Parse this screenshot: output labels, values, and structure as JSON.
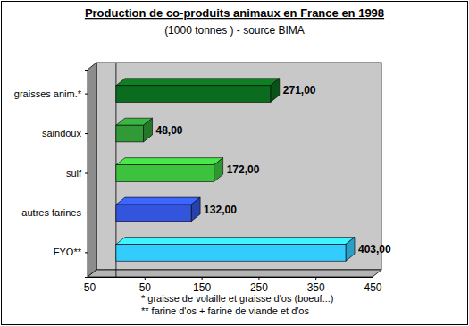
{
  "chart_data": {
    "type": "bar",
    "orientation": "horizontal",
    "title": "Production de co-produits animaux en France en 1998",
    "subtitle": "(1000 tonnes ) - source BIMA",
    "annotations": [
      "* graisse de volaille et graisse d'os (boeuf...)",
      "** farine d'os + farine de viande et d'os"
    ],
    "categories": [
      "graisses anim.*",
      "saindoux",
      "suif",
      "autres farines",
      "FYO**"
    ],
    "values": [
      271,
      48,
      172,
      132,
      403
    ],
    "value_labels": [
      "271,00",
      "48,00",
      "172,00",
      "132,00",
      "403,00"
    ],
    "colors": [
      "#0b6b1e",
      "#2f9a36",
      "#3cc23c",
      "#3355dd",
      "#33ccff"
    ],
    "data_labels": true,
    "grid": false,
    "xlim": [
      -50,
      450
    ],
    "xticks": [
      -50,
      50,
      150,
      250,
      350,
      450
    ]
  }
}
